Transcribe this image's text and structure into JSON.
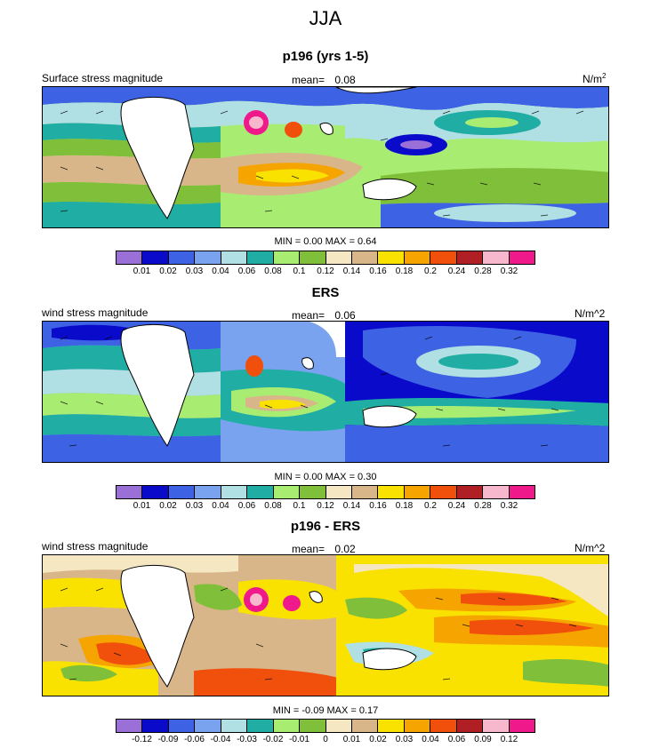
{
  "title": "JJA",
  "panels": [
    {
      "title": "p196 (yrs 1-5)",
      "left_label": "Surface stress magnitude",
      "mean_label": "mean=",
      "mean_value": "0.08",
      "units": "N/m",
      "units_sup": "2",
      "stats": "MIN =  0.00 MAX =  0.64",
      "levels": [
        "0.01",
        "0.02",
        "0.03",
        "0.04",
        "0.06",
        "0.08",
        "0.1",
        "0.12",
        "0.14",
        "0.16",
        "0.18",
        "0.2",
        "0.24",
        "0.28",
        "0.32"
      ]
    },
    {
      "title": "ERS",
      "left_label": "wind stress magnitude",
      "mean_label": "mean=",
      "mean_value": "0.06",
      "units": "N/m^2",
      "units_sup": "",
      "stats": "MIN =  0.00 MAX =  0.30",
      "levels": [
        "0.01",
        "0.02",
        "0.03",
        "0.04",
        "0.06",
        "0.08",
        "0.1",
        "0.12",
        "0.14",
        "0.16",
        "0.18",
        "0.2",
        "0.24",
        "0.28",
        "0.32"
      ]
    },
    {
      "title": "p196 - ERS",
      "left_label": "wind stress magnitude",
      "mean_label": "mean=",
      "mean_value": "0.02",
      "units": "N/m^2",
      "units_sup": "",
      "stats": "MIN = -0.09 MAX =  0.17",
      "levels": [
        "-0.12",
        "-0.09",
        "-0.06",
        "-0.04",
        "-0.03",
        "-0.02",
        "-0.01",
        "0",
        "0.01",
        "0.02",
        "0.03",
        "0.04",
        "0.06",
        "0.09",
        "0.12"
      ]
    }
  ],
  "colorbar_colors": [
    "#9b6fd8",
    "#0a0acb",
    "#3d62e4",
    "#7aa3ef",
    "#b1e0e4",
    "#20ada4",
    "#a8ec72",
    "#7fbf3a",
    "#f4e7c2",
    "#d9b68a",
    "#f9e200",
    "#f6a400",
    "#f0500c",
    "#b01f24",
    "#f7b7cc",
    "#f0198c"
  ],
  "chart_data": [
    {
      "type": "heatmap",
      "title": "p196 (yrs 1-5)",
      "variable": "Surface stress magnitude",
      "units": "N/m2",
      "mean": 0.08,
      "min": 0.0,
      "max": 0.64,
      "contour_levels": [
        0.01,
        0.02,
        0.03,
        0.04,
        0.06,
        0.08,
        0.1,
        0.12,
        0.14,
        0.16,
        0.18,
        0.2,
        0.24,
        0.28,
        0.32
      ]
    },
    {
      "type": "heatmap",
      "title": "ERS",
      "variable": "wind stress magnitude",
      "units": "N/m^2",
      "mean": 0.06,
      "min": 0.0,
      "max": 0.3,
      "contour_levels": [
        0.01,
        0.02,
        0.03,
        0.04,
        0.06,
        0.08,
        0.1,
        0.12,
        0.14,
        0.16,
        0.18,
        0.2,
        0.24,
        0.28,
        0.32
      ]
    },
    {
      "type": "heatmap",
      "title": "p196 - ERS",
      "variable": "wind stress magnitude",
      "units": "N/m^2",
      "mean": 0.02,
      "min": -0.09,
      "max": 0.17,
      "contour_levels": [
        -0.12,
        -0.09,
        -0.06,
        -0.04,
        -0.03,
        -0.02,
        -0.01,
        0,
        0.01,
        0.02,
        0.03,
        0.04,
        0.06,
        0.09,
        0.12
      ]
    }
  ]
}
